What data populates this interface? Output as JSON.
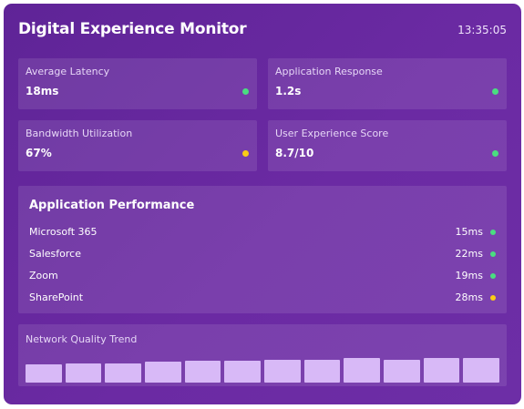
{
  "header": {
    "title": "Digital Experience Monitor",
    "time": "13:35:05"
  },
  "metrics": [
    {
      "label": "Average Latency",
      "value": "18ms",
      "status": "good",
      "status_color": "#4ade80"
    },
    {
      "label": "Application Response",
      "value": "1.2s",
      "status": "good",
      "status_color": "#4ade80"
    },
    {
      "label": "Bandwidth Utilization",
      "value": "67%",
      "status": "warning",
      "status_color": "#facc15"
    },
    {
      "label": "User Experience Score",
      "value": "8.7/10",
      "status": "good",
      "status_color": "#4ade80"
    }
  ],
  "performance": {
    "title": "Application Performance",
    "apps": [
      {
        "name": "Microsoft 365",
        "latency": "15ms",
        "status": "good"
      },
      {
        "name": "Salesforce",
        "latency": "22ms",
        "status": "good"
      },
      {
        "name": "Zoom",
        "latency": "19ms",
        "status": "good"
      },
      {
        "name": "SharePoint",
        "latency": "28ms",
        "status": "warning"
      }
    ]
  },
  "trend": {
    "title": "Network Quality Trend",
    "levels": [
      0.58,
      0.63,
      0.63,
      0.68,
      0.7,
      0.7,
      0.73,
      0.75,
      0.78,
      0.75,
      0.8,
      0.8
    ]
  },
  "colors": {
    "good": "#4ade80",
    "warning": "#facc15",
    "bar": "#d8b9f7",
    "background": "#6b2aa3"
  }
}
